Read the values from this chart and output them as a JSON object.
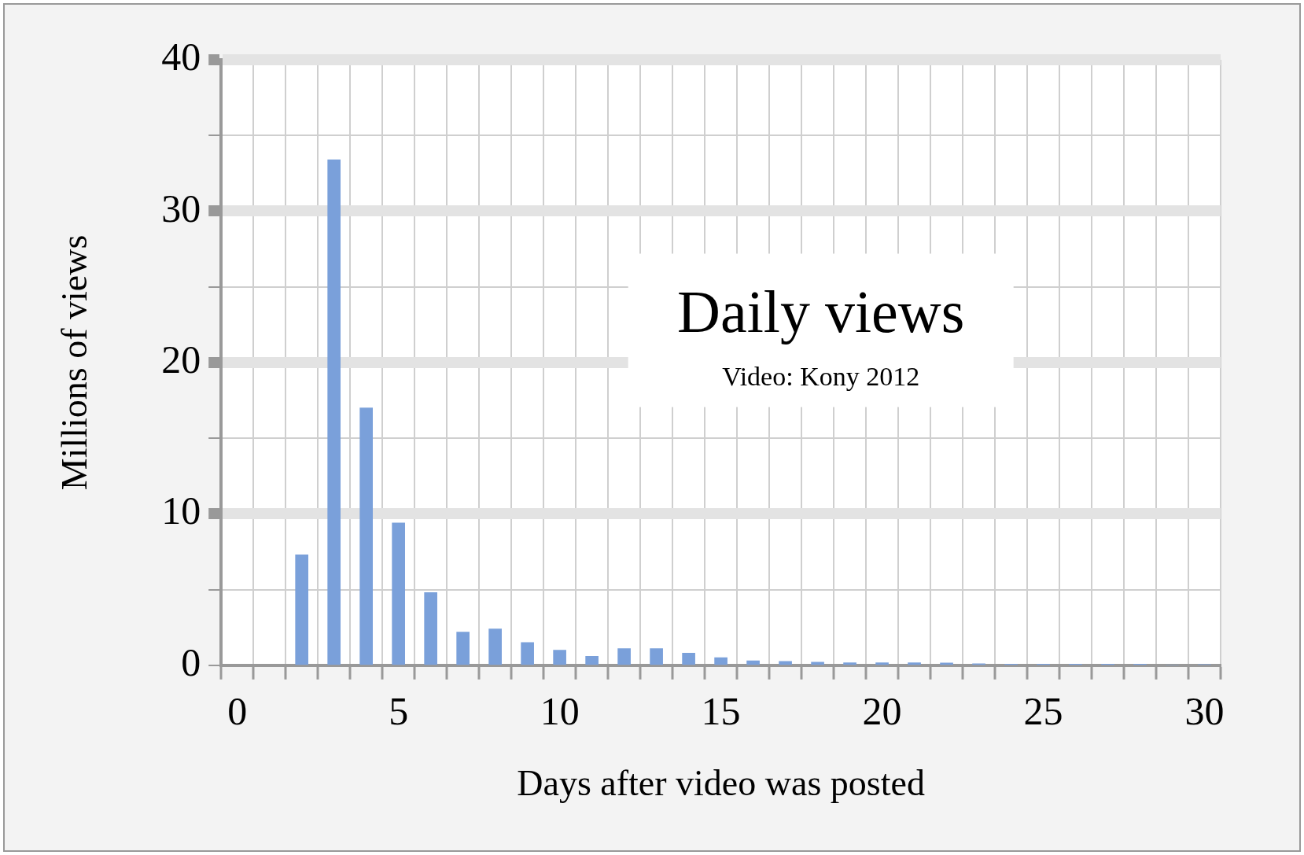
{
  "chart_data": {
    "type": "bar",
    "title": "Daily views",
    "subtitle": "Video: Kony 2012",
    "xlabel": "Days after video was posted",
    "ylabel": "Millions of views",
    "x": [
      2,
      3,
      4,
      5,
      6,
      7,
      8,
      9,
      10,
      11,
      12,
      13,
      14,
      15,
      16,
      17,
      18,
      19,
      20,
      21,
      22,
      23,
      24,
      25,
      26,
      27,
      28,
      29,
      30
    ],
    "values": [
      7.3,
      33.4,
      17,
      9.4,
      4.8,
      2.2,
      2.4,
      1.5,
      1,
      0.6,
      1.1,
      1.1,
      0.8,
      0.5,
      0.3,
      0.26,
      0.2,
      0.17,
      0.17,
      0.17,
      0.15,
      0.1,
      0.08,
      0.08,
      0.08,
      0.08,
      0.08,
      0,
      0.05
    ],
    "color": "#7aa0da",
    "xlim": [
      -0.5,
      30.5
    ],
    "xticks": [
      0,
      5,
      10,
      15,
      20,
      25,
      30,
      {
        "value": -0.5,
        "label": null
      },
      {
        "value": 0.5,
        "label": null
      },
      {
        "value": 1.5,
        "label": null
      },
      {
        "value": 2.5,
        "label": null
      },
      {
        "value": 3.5,
        "label": null
      },
      {
        "value": 4.5,
        "label": null
      },
      {
        "value": 5.5,
        "label": null
      },
      {
        "value": 6.5,
        "label": null
      },
      {
        "value": 7.5,
        "label": null
      },
      {
        "value": 8.5,
        "label": null
      },
      {
        "value": 9.5,
        "label": null
      },
      {
        "value": 10.5,
        "label": null
      },
      {
        "value": 11.5,
        "label": null
      },
      {
        "value": 12.5,
        "label": null
      },
      {
        "value": 13.5,
        "label": null
      },
      {
        "value": 14.5,
        "label": null
      },
      {
        "value": 15.5,
        "label": null
      },
      {
        "value": 16.5,
        "label": null
      },
      {
        "value": 17.5,
        "label": null
      },
      {
        "value": 18.5,
        "label": null
      },
      {
        "value": 19.5,
        "label": null
      },
      {
        "value": 20.5,
        "label": null
      },
      {
        "value": 21.5,
        "label": null
      },
      {
        "value": 22.5,
        "label": null
      },
      {
        "value": 23.5,
        "label": null
      },
      {
        "value": 24.5,
        "label": null
      },
      {
        "value": 25.5,
        "label": null
      },
      {
        "value": 26.5,
        "label": null
      },
      {
        "value": 27.5,
        "label": null
      },
      {
        "value": 28.5,
        "label": null
      },
      {
        "value": 29.5,
        "label": null
      },
      {
        "value": 30.5,
        "label": null
      }
    ],
    "ylim": [
      0,
      40
    ],
    "yticks": [
      0,
      {
        "value": 5,
        "label": null
      },
      10,
      {
        "value": 15,
        "label": null
      },
      20,
      {
        "value": 25,
        "label": null
      },
      30,
      {
        "value": 35,
        "label": null
      },
      40
    ],
    "grid": true,
    "legend": false
  }
}
